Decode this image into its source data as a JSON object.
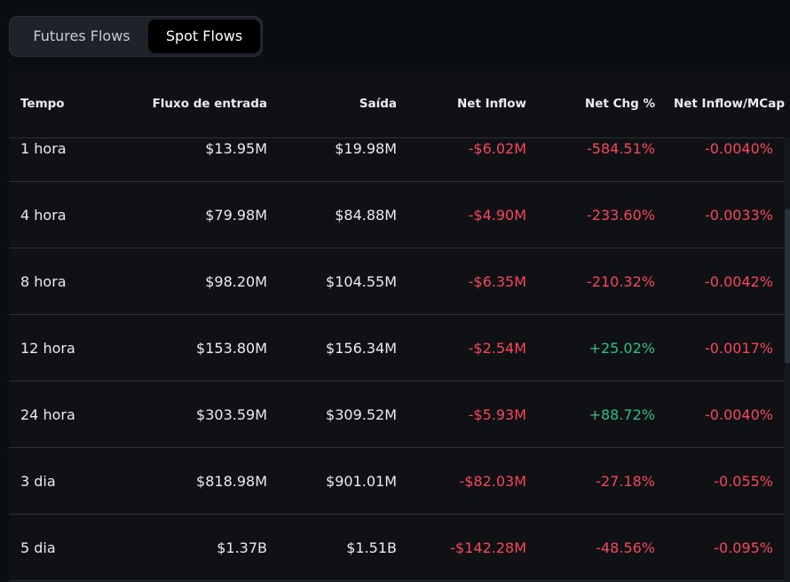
{
  "tabs": [
    {
      "label": "Futures Flows",
      "active": false
    },
    {
      "label": "Spot Flows",
      "active": true
    }
  ],
  "columns": [
    "Tempo",
    "Fluxo de entrada",
    "Saída",
    "Net Inflow",
    "Net Chg %",
    "Net Inflow/MCap"
  ],
  "colors": {
    "negative": "#f6465d",
    "positive": "#2ebd85",
    "background": "#0b0e11"
  },
  "rows": [
    {
      "time": "1 hora",
      "inflow": "$13.95M",
      "outflow": "$19.98M",
      "net": "-$6.02M",
      "chg": "-584.51%",
      "mcap": "-0.0040%"
    },
    {
      "time": "4 hora",
      "inflow": "$79.98M",
      "outflow": "$84.88M",
      "net": "-$4.90M",
      "chg": "-233.60%",
      "mcap": "-0.0033%"
    },
    {
      "time": "8 hora",
      "inflow": "$98.20M",
      "outflow": "$104.55M",
      "net": "-$6.35M",
      "chg": "-210.32%",
      "mcap": "-0.0042%"
    },
    {
      "time": "12 hora",
      "inflow": "$153.80M",
      "outflow": "$156.34M",
      "net": "-$2.54M",
      "chg": "+25.02%",
      "mcap": "-0.0017%"
    },
    {
      "time": "24 hora",
      "inflow": "$303.59M",
      "outflow": "$309.52M",
      "net": "-$5.93M",
      "chg": "+88.72%",
      "mcap": "-0.0040%"
    },
    {
      "time": "3 dia",
      "inflow": "$818.98M",
      "outflow": "$901.01M",
      "net": "-$82.03M",
      "chg": "-27.18%",
      "mcap": "-0.055%"
    },
    {
      "time": "5 dia",
      "inflow": "$1.37B",
      "outflow": "$1.51B",
      "net": "-$142.28M",
      "chg": "-48.56%",
      "mcap": "-0.095%"
    }
  ]
}
